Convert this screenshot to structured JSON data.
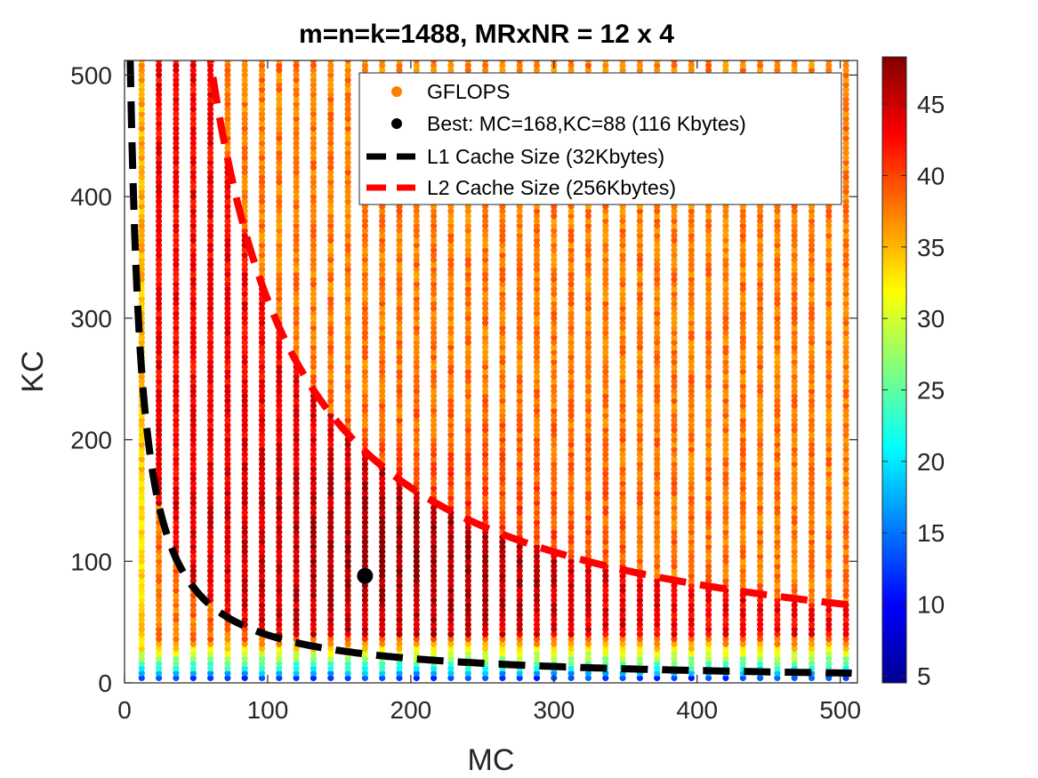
{
  "chart_data": {
    "type": "scatter",
    "title": "m=n=k=1488, MRxNR = 12 x 4",
    "xlabel": "MC",
    "ylabel": "KC",
    "xlim": [
      0,
      512
    ],
    "ylim": [
      0,
      512
    ],
    "xticks": [
      0,
      100,
      200,
      300,
      400,
      500
    ],
    "yticks": [
      0,
      100,
      200,
      300,
      400,
      500
    ],
    "mr": 12,
    "nr": 4,
    "grid_step": 12,
    "colorbar": {
      "min": 4.5,
      "max": 48.3,
      "ticks": [
        5,
        10,
        15,
        20,
        25,
        30,
        35,
        40,
        45
      ],
      "colormap": "jet"
    },
    "series": [
      {
        "name": "GFLOPS",
        "marker": "filled-circle",
        "color": "#ff7f00"
      },
      {
        "name": "Best: MC=168,KC=88 (116 Kbytes)",
        "marker": "filled-circle",
        "color": "#000000",
        "x": 168,
        "y": 88
      },
      {
        "name": "L1 Cache Size  (32Kbytes)",
        "style": "dashed",
        "color": "#000000",
        "cache_kbytes": 32
      },
      {
        "name": "L2 Cache Size (256Kbytes)",
        "style": "dashed",
        "color": "#ff0000",
        "cache_kbytes": 256
      }
    ],
    "legend_position": "top-right"
  }
}
